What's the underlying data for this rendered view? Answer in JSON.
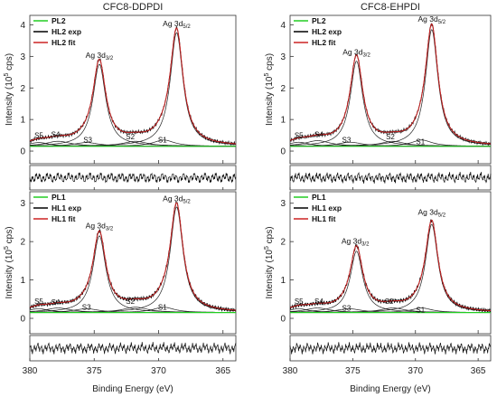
{
  "chart_data": [
    {
      "type": "line",
      "title": "CFC8-DDPDI",
      "xlabel": "",
      "ylabel": "Intensity (10^5 cps)",
      "xlim": [
        380,
        364
      ],
      "ylim": [
        -0.4,
        4.3
      ],
      "xticks": [
        380,
        375,
        370,
        365
      ],
      "yticks": [
        0,
        1,
        2,
        3,
        4
      ],
      "series": [
        {
          "name": "PL2",
          "color": "#22cc22"
        },
        {
          "name": "HL2 exp",
          "color": "#000000"
        },
        {
          "name": "HL2 fit",
          "color": "#cc2222"
        }
      ],
      "peaks": [
        {
          "label": "S5",
          "center": 379.3,
          "height": 0.12,
          "width": 1.0,
          "text_x": 379.3,
          "text_y": 0.42
        },
        {
          "label": "S4",
          "center": 377.8,
          "height": 0.16,
          "width": 1.2,
          "text_x": 378.0,
          "text_y": 0.44
        },
        {
          "label": "S3",
          "center": 375.6,
          "height": 0.12,
          "width": 1.2,
          "text_x": 375.5,
          "text_y": 0.27
        },
        {
          "label": "Ag 3d3/2",
          "center": 374.6,
          "height": 2.6,
          "width": 0.6,
          "text_x": 374.6,
          "text_y": 2.95
        },
        {
          "label": "S2",
          "center": 371.8,
          "height": 0.16,
          "width": 1.2,
          "text_x": 372.2,
          "text_y": 0.37
        },
        {
          "label": "S1",
          "center": 369.6,
          "height": 0.2,
          "width": 1.0,
          "text_x": 369.7,
          "text_y": 0.27
        },
        {
          "label": "Ag 3d5/2",
          "center": 368.6,
          "height": 3.6,
          "width": 0.6,
          "text_x": 368.6,
          "text_y": 3.95
        }
      ],
      "baseline": 0.15
    },
    {
      "type": "line",
      "title": "CFC8-EHPDI",
      "xlabel": "",
      "ylabel": "Intensity (10^5 cps)",
      "xlim": [
        380,
        364
      ],
      "ylim": [
        -0.4,
        4.3
      ],
      "xticks": [
        380,
        375,
        370,
        365
      ],
      "yticks": [
        0,
        1,
        2,
        3,
        4
      ],
      "series": [
        {
          "name": "PL2",
          "color": "#22cc22"
        },
        {
          "name": "HL2 exp",
          "color": "#000000"
        },
        {
          "name": "HL2 fit",
          "color": "#cc2222"
        }
      ],
      "peaks": [
        {
          "label": "S5",
          "center": 379.3,
          "height": 0.13,
          "width": 1.0,
          "text_x": 379.3,
          "text_y": 0.42
        },
        {
          "label": "S4",
          "center": 377.8,
          "height": 0.18,
          "width": 1.2,
          "text_x": 377.7,
          "text_y": 0.45
        },
        {
          "label": "S3",
          "center": 375.2,
          "height": 0.13,
          "width": 1.2,
          "text_x": 375.5,
          "text_y": 0.27
        },
        {
          "label": "Ag 3d3/2",
          "center": 374.7,
          "height": 2.7,
          "width": 0.6,
          "text_x": 374.7,
          "text_y": 3.05
        },
        {
          "label": "S2",
          "center": 371.8,
          "height": 0.16,
          "width": 1.2,
          "text_x": 372.0,
          "text_y": 0.37
        },
        {
          "label": "S1",
          "center": 369.5,
          "height": 0.2,
          "width": 1.0,
          "text_x": 369.6,
          "text_y": 0.22
        },
        {
          "label": "Ag 3d5/2",
          "center": 368.7,
          "height": 3.7,
          "width": 0.6,
          "text_x": 368.7,
          "text_y": 4.1
        }
      ],
      "baseline": 0.15
    },
    {
      "type": "line",
      "title": "",
      "xlabel": "Binding Energy (eV)",
      "ylabel": "Intensity (10^5 cps)",
      "xlim": [
        380,
        364
      ],
      "ylim": [
        -0.4,
        3.3
      ],
      "xticks": [
        380,
        375,
        370,
        365
      ],
      "yticks": [
        0,
        1,
        2,
        3
      ],
      "series": [
        {
          "name": "PL1",
          "color": "#22cc22"
        },
        {
          "name": "HL1 exp",
          "color": "#000000"
        },
        {
          "name": "HL1 fit",
          "color": "#cc2222"
        }
      ],
      "peaks": [
        {
          "label": "S5",
          "center": 379.3,
          "height": 0.1,
          "width": 1.0,
          "text_x": 379.3,
          "text_y": 0.38
        },
        {
          "label": "S4",
          "center": 377.8,
          "height": 0.12,
          "width": 1.2,
          "text_x": 378.0,
          "text_y": 0.36
        },
        {
          "label": "S3",
          "center": 375.6,
          "height": 0.1,
          "width": 1.2,
          "text_x": 375.6,
          "text_y": 0.22
        },
        {
          "label": "Ag 3d3/2",
          "center": 374.6,
          "height": 2.0,
          "width": 0.6,
          "text_x": 374.6,
          "text_y": 2.35
        },
        {
          "label": "S2",
          "center": 371.8,
          "height": 0.14,
          "width": 1.2,
          "text_x": 372.2,
          "text_y": 0.38
        },
        {
          "label": "S1",
          "center": 369.6,
          "height": 0.14,
          "width": 1.0,
          "text_x": 369.7,
          "text_y": 0.23
        },
        {
          "label": "Ag 3d5/2",
          "center": 368.6,
          "height": 2.75,
          "width": 0.6,
          "text_x": 368.6,
          "text_y": 3.05
        }
      ],
      "baseline": 0.15
    },
    {
      "type": "line",
      "title": "",
      "xlabel": "Binding Energy (eV)",
      "ylabel": "Intensity (10^5 cps)",
      "xlim": [
        380,
        364
      ],
      "ylim": [
        -0.4,
        3.3
      ],
      "xticks": [
        380,
        375,
        370,
        365
      ],
      "yticks": [
        0,
        1,
        2,
        3
      ],
      "series": [
        {
          "name": "PL1",
          "color": "#22cc22"
        },
        {
          "name": "HL1 exp",
          "color": "#000000"
        },
        {
          "name": "HL1 fit",
          "color": "#cc2222"
        }
      ],
      "peaks": [
        {
          "label": "S5",
          "center": 379.3,
          "height": 0.1,
          "width": 1.0,
          "text_x": 379.3,
          "text_y": 0.38
        },
        {
          "label": "S4",
          "center": 377.8,
          "height": 0.12,
          "width": 1.2,
          "text_x": 377.7,
          "text_y": 0.38
        },
        {
          "label": "S3",
          "center": 375.3,
          "height": 0.1,
          "width": 1.2,
          "text_x": 375.5,
          "text_y": 0.2
        },
        {
          "label": "Ag 3d3/2",
          "center": 374.7,
          "height": 1.6,
          "width": 0.6,
          "text_x": 374.8,
          "text_y": 1.95
        },
        {
          "label": "S2",
          "center": 371.8,
          "height": 0.12,
          "width": 1.2,
          "text_x": 372.1,
          "text_y": 0.38
        },
        {
          "label": "S1",
          "center": 369.5,
          "height": 0.12,
          "width": 1.0,
          "text_x": 369.6,
          "text_y": 0.15
        },
        {
          "label": "Ag 3d5/2",
          "center": 368.7,
          "height": 2.3,
          "width": 0.6,
          "text_x": 368.7,
          "text_y": 2.7
        }
      ],
      "baseline": 0.15
    }
  ],
  "layout_note": "two columns x two rows of XPS Ag 3d spectra with residual strips"
}
